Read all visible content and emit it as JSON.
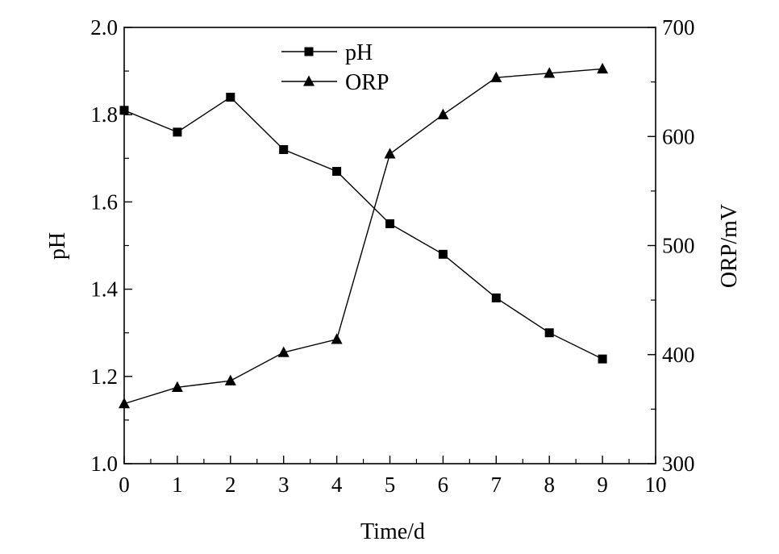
{
  "chart_data": {
    "type": "line",
    "xlabel": "Time/d",
    "ylabel_left": "pH",
    "ylabel_right": "ORP/mV",
    "x_ticks": [
      "0",
      "1",
      "2",
      "3",
      "4",
      "5",
      "6",
      "7",
      "8",
      "9",
      "10"
    ],
    "y_left_ticks": [
      "1.0",
      "1.2",
      "1.4",
      "1.6",
      "1.8",
      "2.0"
    ],
    "y_right_ticks": [
      "300",
      "400",
      "500",
      "600",
      "700"
    ],
    "xlim": [
      0,
      10
    ],
    "ylim_left": [
      1.0,
      2.0
    ],
    "ylim_right": [
      300,
      700
    ],
    "grid": false,
    "legend_position": "top-center",
    "x": [
      0,
      1,
      2,
      3,
      4,
      5,
      6,
      7,
      8,
      9
    ],
    "series": [
      {
        "name": "pH",
        "axis": "left",
        "marker": "square",
        "values": [
          1.81,
          1.76,
          1.84,
          1.72,
          1.67,
          1.55,
          1.48,
          1.38,
          1.3,
          1.24
        ]
      },
      {
        "name": "ORP",
        "axis": "right",
        "marker": "triangle",
        "values": [
          355,
          370,
          376,
          402,
          414,
          584,
          620,
          654,
          658,
          662
        ]
      }
    ]
  }
}
